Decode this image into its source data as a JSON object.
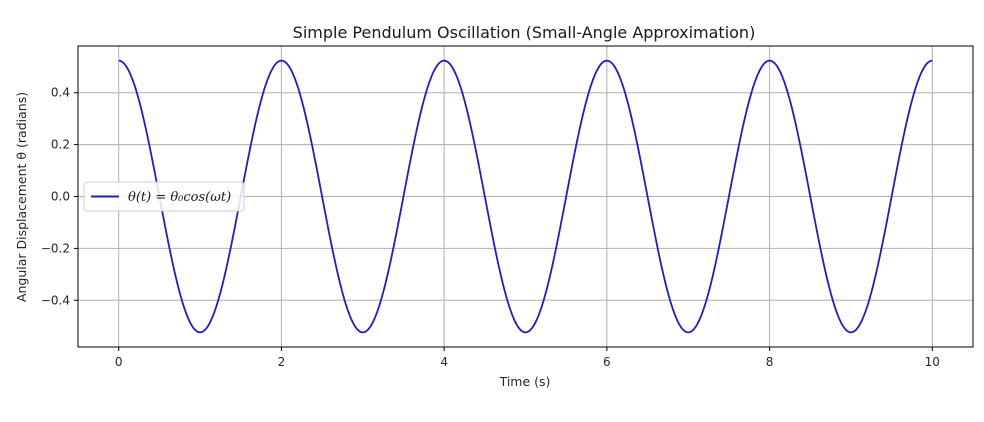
{
  "chart_data": {
    "type": "line",
    "title": "Simple Pendulum Oscillation (Small-Angle Approximation)",
    "xlabel": "Time (s)",
    "ylabel": "Angular Displacement θ (radians)",
    "xlim": [
      -0.5,
      10.5
    ],
    "ylim": [
      -0.58,
      0.58
    ],
    "x_ticks": [
      0,
      2,
      4,
      6,
      8,
      10
    ],
    "x_tick_labels": [
      "0",
      "2",
      "4",
      "6",
      "8",
      "10"
    ],
    "y_ticks": [
      -0.4,
      -0.2,
      0.0,
      0.2,
      0.4
    ],
    "y_tick_labels": [
      "−0.4",
      "−0.2",
      "0.0",
      "0.2",
      "0.4"
    ],
    "grid": true,
    "legend_position": "center-left",
    "series": [
      {
        "name": "θ(t) = θ₀cos(ωt)",
        "color": "#1f1fbf",
        "theta0": 0.5236,
        "period": 2.0,
        "t_start": 0,
        "t_end": 10
      }
    ]
  }
}
